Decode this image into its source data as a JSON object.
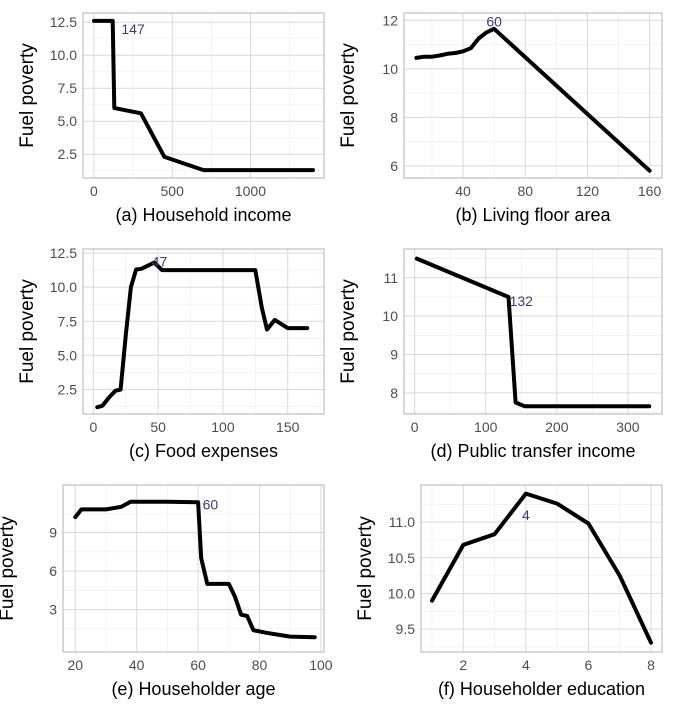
{
  "chart_data": [
    {
      "type": "line",
      "title": "(a) Household income",
      "xlabel": "(a) Household income",
      "ylabel": "Fuel poverty",
      "xlim": [
        -70,
        1470
      ],
      "ylim": [
        0.7,
        13.2
      ],
      "xticks": [
        0,
        500,
        1000
      ],
      "yticks": [
        2.5,
        5.0,
        7.5,
        10.0,
        12.5
      ],
      "ytick_labels": [
        "2.5",
        "5.0",
        "7.5",
        "10.0",
        "12.5"
      ],
      "annotation": {
        "text": "147",
        "x": 250,
        "y": 12.0
      },
      "x": [
        0,
        60,
        120,
        130,
        300,
        450,
        700,
        1000,
        1400
      ],
      "y": [
        12.6,
        12.6,
        12.6,
        6.0,
        5.6,
        2.3,
        1.3,
        1.3,
        1.3
      ]
    },
    {
      "type": "line",
      "title": "(b) Living floor area",
      "xlabel": "(b) Living floor area",
      "ylabel": "Fuel poverty",
      "xlim": [
        2,
        168
      ],
      "ylim": [
        5.5,
        12.3
      ],
      "xticks": [
        40,
        80,
        120,
        160
      ],
      "yticks": [
        6,
        8,
        10,
        12
      ],
      "ytick_labels": [
        "6",
        "8",
        "10",
        "12"
      ],
      "annotation": {
        "text": "60",
        "x": 60,
        "y": 11.95
      },
      "x": [
        10,
        15,
        20,
        25,
        30,
        35,
        40,
        45,
        50,
        55,
        60,
        160
      ],
      "y": [
        10.45,
        10.5,
        10.5,
        10.55,
        10.62,
        10.65,
        10.72,
        10.85,
        11.25,
        11.5,
        11.65,
        5.8
      ]
    },
    {
      "type": "line",
      "title": "(c) Food expenses",
      "xlabel": "(c) Food expenses",
      "ylabel": "Fuel poverty",
      "xlim": [
        -8,
        178
      ],
      "ylim": [
        0.7,
        12.8
      ],
      "xticks": [
        0,
        50,
        100,
        150
      ],
      "yticks": [
        2.5,
        5.0,
        7.5,
        10.0,
        12.5
      ],
      "ytick_labels": [
        "2.5",
        "5.0",
        "7.5",
        "10.0",
        "12.5"
      ],
      "annotation": {
        "text": "47",
        "x": 51,
        "y": 11.9
      },
      "x": [
        3,
        7,
        12,
        17,
        21,
        25,
        29,
        33,
        37,
        47,
        53,
        100,
        125,
        130,
        134,
        140,
        150,
        165
      ],
      "y": [
        1.2,
        1.3,
        1.9,
        2.4,
        2.5,
        6.5,
        10.0,
        11.3,
        11.35,
        11.8,
        11.25,
        11.25,
        11.25,
        8.5,
        6.9,
        7.6,
        7.0,
        7.0
      ]
    },
    {
      "type": "line",
      "title": "(d) Public transfer income",
      "xlabel": "(d) Public transfer income",
      "ylabel": "Fuel poverty",
      "xlim": [
        -15,
        348
      ],
      "ylim": [
        7.45,
        11.75
      ],
      "xticks": [
        0,
        100,
        200,
        300
      ],
      "yticks": [
        8,
        9,
        10,
        11
      ],
      "ytick_labels": [
        "8",
        "9",
        "10",
        "11"
      ],
      "annotation": {
        "text": "132",
        "x": 150,
        "y": 10.4
      },
      "x": [
        3,
        132,
        142,
        155,
        330
      ],
      "y": [
        11.5,
        10.5,
        7.75,
        7.65,
        7.65
      ]
    },
    {
      "type": "line",
      "title": "(e) Householder age",
      "xlabel": "(e) Householder age",
      "ylabel": "Fuel poverty",
      "xlim": [
        16,
        101
      ],
      "ylim": [
        -0.3,
        12.7
      ],
      "xticks": [
        20,
        40,
        60,
        80,
        100
      ],
      "yticks": [
        3,
        6,
        9
      ],
      "ytick_labels": [
        "3",
        "6",
        "9"
      ],
      "annotation": {
        "text": "60",
        "x": 64,
        "y": 11.2
      },
      "x": [
        20,
        22,
        30,
        35,
        38,
        50,
        60,
        61,
        63,
        70,
        72,
        74,
        76,
        78,
        82,
        90,
        98
      ],
      "y": [
        10.2,
        10.8,
        10.8,
        11.0,
        11.4,
        11.4,
        11.35,
        7.0,
        5.0,
        5.0,
        4.0,
        2.6,
        2.5,
        1.4,
        1.2,
        0.9,
        0.85
      ]
    },
    {
      "type": "line",
      "title": "(f) Householder education",
      "xlabel": "(f) Householder education",
      "ylabel": "Fuel poverty",
      "xlim": [
        0.65,
        8.35
      ],
      "ylim": [
        9.18,
        11.52
      ],
      "xticks": [
        2,
        4,
        6,
        8
      ],
      "yticks": [
        9.5,
        10.0,
        10.5,
        11.0
      ],
      "ytick_labels": [
        "9.5",
        "10.0",
        "10.5",
        "11.0"
      ],
      "annotation": {
        "text": "4",
        "x": 4.0,
        "y": 11.1
      },
      "x": [
        1,
        2,
        3,
        4,
        5,
        6,
        7,
        8
      ],
      "y": [
        9.9,
        10.68,
        10.83,
        11.4,
        11.26,
        10.98,
        10.25,
        9.31
      ]
    }
  ]
}
